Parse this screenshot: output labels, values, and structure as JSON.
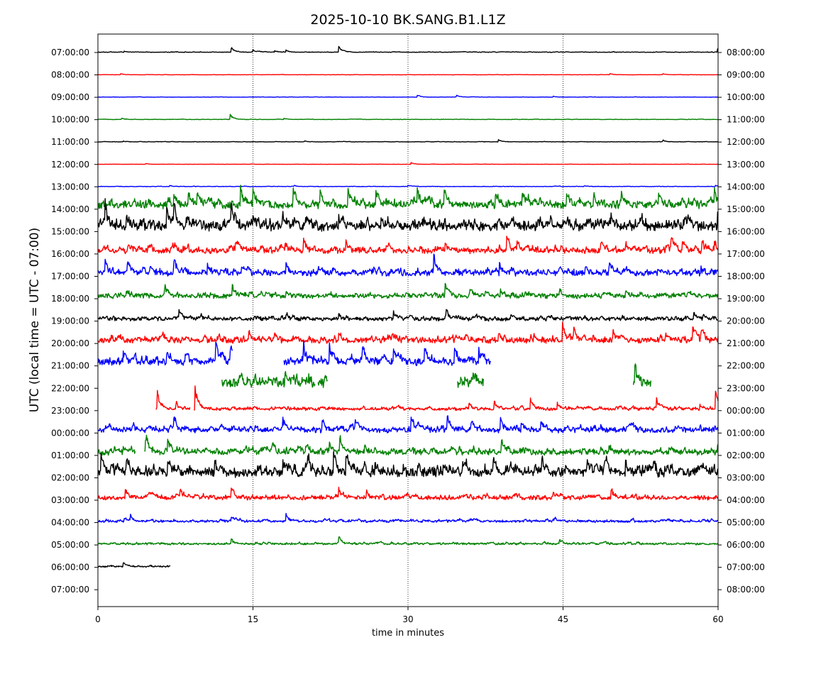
{
  "chart_data": {
    "type": "line",
    "title": "2025-10-10 BK.SANG.B1.L1Z",
    "xlabel": "time in minutes",
    "ylabel": "UTC (local time = UTC - 07:00)",
    "xlim": [
      0,
      60
    ],
    "x_ticks": [
      0,
      15,
      30,
      45,
      60
    ],
    "x_tick_labels": [
      "0",
      "15",
      "30",
      "45",
      "60"
    ],
    "grid": "vertical dotted lines at 15, 30, 45",
    "colors": [
      "#000000",
      "#ff0000",
      "#0000ff",
      "#008000"
    ],
    "left_labels": [
      "07:00:00",
      "08:00:00",
      "09:00:00",
      "10:00:00",
      "11:00:00",
      "12:00:00",
      "13:00:00",
      "14:00:00",
      "15:00:00",
      "16:00:00",
      "17:00:00",
      "18:00:00",
      "19:00:00",
      "20:00:00",
      "21:00:00",
      "22:00:00",
      "23:00:00",
      "00:00:00",
      "01:00:00",
      "02:00:00",
      "03:00:00",
      "04:00:00",
      "05:00:00",
      "06:00:00",
      "07:00:00"
    ],
    "right_labels": [
      "08:00:00",
      "09:00:00",
      "10:00:00",
      "11:00:00",
      "12:00:00",
      "13:00:00",
      "14:00:00",
      "15:00:00",
      "16:00:00",
      "17:00:00",
      "18:00:00",
      "19:00:00",
      "20:00:00",
      "21:00:00",
      "22:00:00",
      "23:00:00",
      "00:00:00",
      "01:00:00",
      "02:00:00",
      "03:00:00",
      "04:00:00",
      "05:00:00",
      "06:00:00",
      "07:00:00",
      "08:00:00"
    ],
    "traces": [
      {
        "hour": "07:00:00",
        "color": "black",
        "level": 0.12,
        "end_minute": 60,
        "events": [
          [
            2.5,
            0.1
          ],
          [
            12.9,
            0.35
          ],
          [
            15.0,
            0.15
          ],
          [
            17.1,
            0.12
          ],
          [
            18.2,
            0.16
          ],
          [
            23.3,
            0.4
          ],
          [
            59.9,
            0.3
          ]
        ]
      },
      {
        "hour": "08:00:00",
        "color": "red",
        "level": 0.05,
        "end_minute": 60,
        "events": [
          [
            2.2,
            0.08
          ],
          [
            49.5,
            0.1
          ],
          [
            54.6,
            0.08
          ]
        ]
      },
      {
        "hour": "09:00:00",
        "color": "blue",
        "level": 0.06,
        "end_minute": 60,
        "events": [
          [
            30.9,
            0.15
          ],
          [
            34.7,
            0.12
          ],
          [
            44.0,
            0.08
          ]
        ]
      },
      {
        "hour": "10:00:00",
        "color": "green",
        "level": 0.08,
        "end_minute": 60,
        "events": [
          [
            2.3,
            0.08
          ],
          [
            12.8,
            0.35
          ],
          [
            18.0,
            0.08
          ]
        ]
      },
      {
        "hour": "11:00:00",
        "color": "black",
        "level": 0.08,
        "end_minute": 60,
        "events": [
          [
            2.4,
            0.06
          ],
          [
            20.0,
            0.06
          ],
          [
            38.7,
            0.2
          ],
          [
            54.6,
            0.15
          ]
        ]
      },
      {
        "hour": "12:00:00",
        "color": "red",
        "level": 0.05,
        "end_minute": 60,
        "events": [
          [
            4.6,
            0.06
          ],
          [
            30.3,
            0.12
          ]
        ]
      },
      {
        "hour": "13:00:00",
        "color": "blue",
        "level": 0.1,
        "end_minute": 60,
        "events": [
          [
            6.9,
            0.08
          ],
          [
            19.0,
            0.08
          ],
          [
            30.0,
            0.12
          ],
          [
            47.0,
            0.06
          ],
          [
            59.7,
            0.1
          ]
        ]
      },
      {
        "hour": "14:00:00",
        "color": "green",
        "level": 1.5,
        "end_minute": 60,
        "events": [
          [
            7.3,
            1.0
          ],
          [
            8.7,
            1.2
          ],
          [
            9.6,
            1.0
          ],
          [
            13.8,
            1.5
          ],
          [
            15.0,
            1.3
          ],
          [
            18.9,
            1.2
          ],
          [
            21.5,
            1.2
          ],
          [
            24.2,
            1.4
          ],
          [
            26.9,
            1.0
          ],
          [
            30.9,
            1.3
          ],
          [
            33.5,
            1.2
          ],
          [
            38.4,
            1.3
          ],
          [
            41.0,
            1.4
          ],
          [
            45.3,
            1.1
          ],
          [
            47.9,
            0.8
          ],
          [
            50.6,
            1.2
          ],
          [
            54.2,
            1.0
          ],
          [
            59.6,
            1.4
          ]
        ]
      },
      {
        "hour": "15:00:00",
        "color": "black",
        "level": 2.0,
        "end_minute": 60,
        "events": [
          [
            0.7,
            1.5
          ],
          [
            2.7,
            1.0
          ],
          [
            6.6,
            1.6
          ],
          [
            7.3,
            1.3
          ],
          [
            12.9,
            1.1
          ],
          [
            15.0,
            0.9
          ],
          [
            17.9,
            0.8
          ],
          [
            20.2,
            0.6
          ],
          [
            23.3,
            0.9
          ],
          [
            27.4,
            0.7
          ],
          [
            31.5,
            0.6
          ],
          [
            38.6,
            0.5
          ],
          [
            49.6,
            0.9
          ],
          [
            52.4,
            0.6
          ],
          [
            56.7,
            0.9
          ],
          [
            59.9,
            1.0
          ]
        ]
      },
      {
        "hour": "16:00:00",
        "color": "red",
        "level": 1.2,
        "end_minute": 60,
        "events": [
          [
            2.9,
            0.5
          ],
          [
            7.2,
            0.6
          ],
          [
            13.3,
            0.7
          ],
          [
            18.1,
            0.5
          ],
          [
            19.9,
            0.8
          ],
          [
            24.0,
            0.6
          ],
          [
            27.9,
            0.5
          ],
          [
            33.6,
            0.5
          ],
          [
            39.5,
            1.0
          ],
          [
            40.5,
            0.6
          ],
          [
            48.6,
            0.5
          ],
          [
            51.0,
            0.7
          ],
          [
            54.9,
            0.6
          ],
          [
            55.4,
            1.2
          ],
          [
            56.5,
            0.9
          ],
          [
            58.4,
            0.7
          ],
          [
            59.6,
            0.5
          ]
        ]
      },
      {
        "hour": "17:00:00",
        "color": "blue",
        "level": 1.2,
        "end_minute": 60,
        "events": [
          [
            0.7,
            0.8
          ],
          [
            2.8,
            1.0
          ],
          [
            5.0,
            0.5
          ],
          [
            7.3,
            1.1
          ],
          [
            10.6,
            0.7
          ],
          [
            13.9,
            0.6
          ],
          [
            18.2,
            0.7
          ],
          [
            21.3,
            0.5
          ],
          [
            32.5,
            1.1
          ],
          [
            38.8,
            0.7
          ],
          [
            47.1,
            0.5
          ],
          [
            49.4,
            1.0
          ],
          [
            54.1,
            0.4
          ],
          [
            58.3,
            0.4
          ]
        ]
      },
      {
        "hour": "18:00:00",
        "color": "green",
        "level": 1.0,
        "end_minute": 60,
        "events": [
          [
            2.7,
            0.6
          ],
          [
            6.4,
            0.8
          ],
          [
            13.0,
            0.7
          ],
          [
            18.2,
            0.5
          ],
          [
            33.6,
            0.9
          ],
          [
            36.0,
            0.4
          ],
          [
            38.9,
            0.6
          ],
          [
            44.6,
            0.4
          ],
          [
            51.0,
            0.5
          ]
        ]
      },
      {
        "hour": "19:00:00",
        "color": "black",
        "level": 0.8,
        "end_minute": 60,
        "events": [
          [
            7.8,
            0.6
          ],
          [
            18.2,
            0.2
          ],
          [
            23.3,
            0.4
          ],
          [
            28.6,
            0.5
          ],
          [
            33.7,
            0.6
          ],
          [
            39.9,
            0.3
          ],
          [
            43.4,
            0.3
          ],
          [
            57.6,
            0.7
          ],
          [
            58.5,
            0.4
          ]
        ]
      },
      {
        "hour": "20:00:00",
        "color": "red",
        "level": 1.2,
        "end_minute": 60,
        "events": [
          [
            5.9,
            0.3
          ],
          [
            14.6,
            0.7
          ],
          [
            23.3,
            0.3
          ],
          [
            38.7,
            0.5
          ],
          [
            42.1,
            0.4
          ],
          [
            44.9,
            1.5
          ],
          [
            46.0,
            0.8
          ],
          [
            49.8,
            0.5
          ],
          [
            54.9,
            0.6
          ],
          [
            57.5,
            1.3
          ],
          [
            58.3,
            0.8
          ]
        ]
      },
      {
        "hour": "21:00:00",
        "color": "blue",
        "level": 1.5,
        "end_minute": 60,
        "segments": [
          [
            0,
            13
          ],
          [
            18,
            38
          ]
        ],
        "events": [
          [
            2.4,
            0.8
          ],
          [
            6.6,
            1.0
          ],
          [
            8.4,
            0.9
          ],
          [
            11.4,
            1.4
          ],
          [
            12.8,
            0.9
          ],
          [
            19.9,
            1.2
          ],
          [
            22.4,
            1.3
          ],
          [
            25.6,
            1.1
          ],
          [
            28.6,
            1.0
          ],
          [
            31.6,
            1.2
          ],
          [
            34.5,
            1.0
          ],
          [
            36.8,
            0.9
          ]
        ]
      },
      {
        "hour": "22:00:00",
        "color": "green",
        "level": 2.0,
        "end_minute": 60,
        "segments": [
          [
            12,
            21
          ],
          [
            21.3,
            22.2
          ],
          [
            34.8,
            37.3
          ],
          [
            51.8,
            53.5
          ]
        ],
        "events": [
          [
            18.1,
            0.9
          ],
          [
            51.9,
            1.5
          ]
        ]
      },
      {
        "hour": "23:00:00",
        "color": "red",
        "level": 0.6,
        "end_minute": 60,
        "segments": [
          [
            5.6,
            8.9
          ],
          [
            9.3,
            60
          ]
        ],
        "events": [
          [
            5.7,
            1.4
          ],
          [
            7.5,
            0.6
          ],
          [
            9.4,
            1.6
          ],
          [
            35.9,
            0.4
          ],
          [
            38.3,
            0.7
          ],
          [
            41.8,
            0.9
          ],
          [
            44.4,
            0.5
          ],
          [
            54.0,
            0.8
          ],
          [
            58.2,
            0.3
          ],
          [
            59.7,
            1.5
          ]
        ]
      },
      {
        "hour": "00:00:00",
        "color": "blue",
        "level": 1.1,
        "end_minute": 60,
        "events": [
          [
            3.3,
            0.3
          ],
          [
            7.3,
            1.0
          ],
          [
            17.9,
            0.7
          ],
          [
            21.7,
            0.8
          ],
          [
            24.9,
            1.1
          ],
          [
            30.3,
            1.0
          ],
          [
            33.8,
            0.8
          ],
          [
            36.1,
            0.7
          ],
          [
            38.9,
            1.0
          ],
          [
            40.9,
            0.8
          ],
          [
            42.8,
            1.0
          ],
          [
            51.1,
            0.5
          ],
          [
            59.6,
            0.4
          ]
        ]
      },
      {
        "hour": "01:00:00",
        "color": "green",
        "level": 1.2,
        "end_minute": 60,
        "segments": [
          [
            0,
            3.6
          ],
          [
            4.5,
            60
          ]
        ],
        "events": [
          [
            2.4,
            0.4
          ],
          [
            4.6,
            1.3
          ],
          [
            6.7,
            1.1
          ],
          [
            16.9,
            0.4
          ],
          [
            20.1,
            0.5
          ],
          [
            22.4,
            0.7
          ],
          [
            23.4,
            1.1
          ],
          [
            25.8,
            0.6
          ],
          [
            39.0,
            0.8
          ],
          [
            49.4,
            0.7
          ],
          [
            55.2,
            0.4
          ],
          [
            59.9,
            0.6
          ]
        ]
      },
      {
        "hour": "02:00:00",
        "color": "black",
        "level": 2.0,
        "end_minute": 60,
        "events": [
          [
            0.3,
            1.3
          ],
          [
            2.7,
            0.9
          ],
          [
            6.7,
            1.3
          ],
          [
            11.3,
            0.7
          ],
          [
            17.9,
            0.9
          ],
          [
            20.3,
            1.0
          ],
          [
            22.8,
            1.1
          ],
          [
            24.0,
            1.3
          ],
          [
            26.8,
            0.8
          ],
          [
            33.4,
            0.6
          ],
          [
            35.3,
            0.9
          ],
          [
            38.2,
            1.0
          ],
          [
            39.8,
            0.7
          ],
          [
            42.9,
            1.0
          ],
          [
            45.2,
            0.9
          ],
          [
            47.3,
            1.0
          ],
          [
            49.0,
            0.8
          ],
          [
            51.0,
            0.9
          ],
          [
            54.8,
            0.6
          ]
        ]
      },
      {
        "hour": "03:00:00",
        "color": "red",
        "level": 0.9,
        "end_minute": 60,
        "events": [
          [
            2.6,
            0.5
          ],
          [
            7.9,
            0.8
          ],
          [
            12.9,
            0.5
          ],
          [
            23.3,
            0.7
          ],
          [
            26.0,
            0.4
          ],
          [
            44.0,
            0.5
          ],
          [
            49.6,
            0.9
          ]
        ]
      },
      {
        "hour": "04:00:00",
        "color": "blue",
        "level": 0.5,
        "end_minute": 60,
        "events": [
          [
            2.5,
            0.3
          ],
          [
            3.1,
            0.4
          ],
          [
            12.9,
            0.4
          ],
          [
            18.2,
            0.5
          ],
          [
            23.3,
            0.2
          ],
          [
            44.1,
            0.3
          ],
          [
            55.0,
            0.2
          ]
        ]
      },
      {
        "hour": "05:00:00",
        "color": "green",
        "level": 0.4,
        "end_minute": 60,
        "events": [
          [
            12.9,
            0.4
          ],
          [
            23.3,
            0.5
          ],
          [
            44.6,
            0.4
          ]
        ]
      },
      {
        "hour": "06:00:00",
        "color": "black",
        "level": 0.3,
        "end_minute": 7,
        "events": [
          [
            2.4,
            0.3
          ]
        ]
      }
    ]
  }
}
